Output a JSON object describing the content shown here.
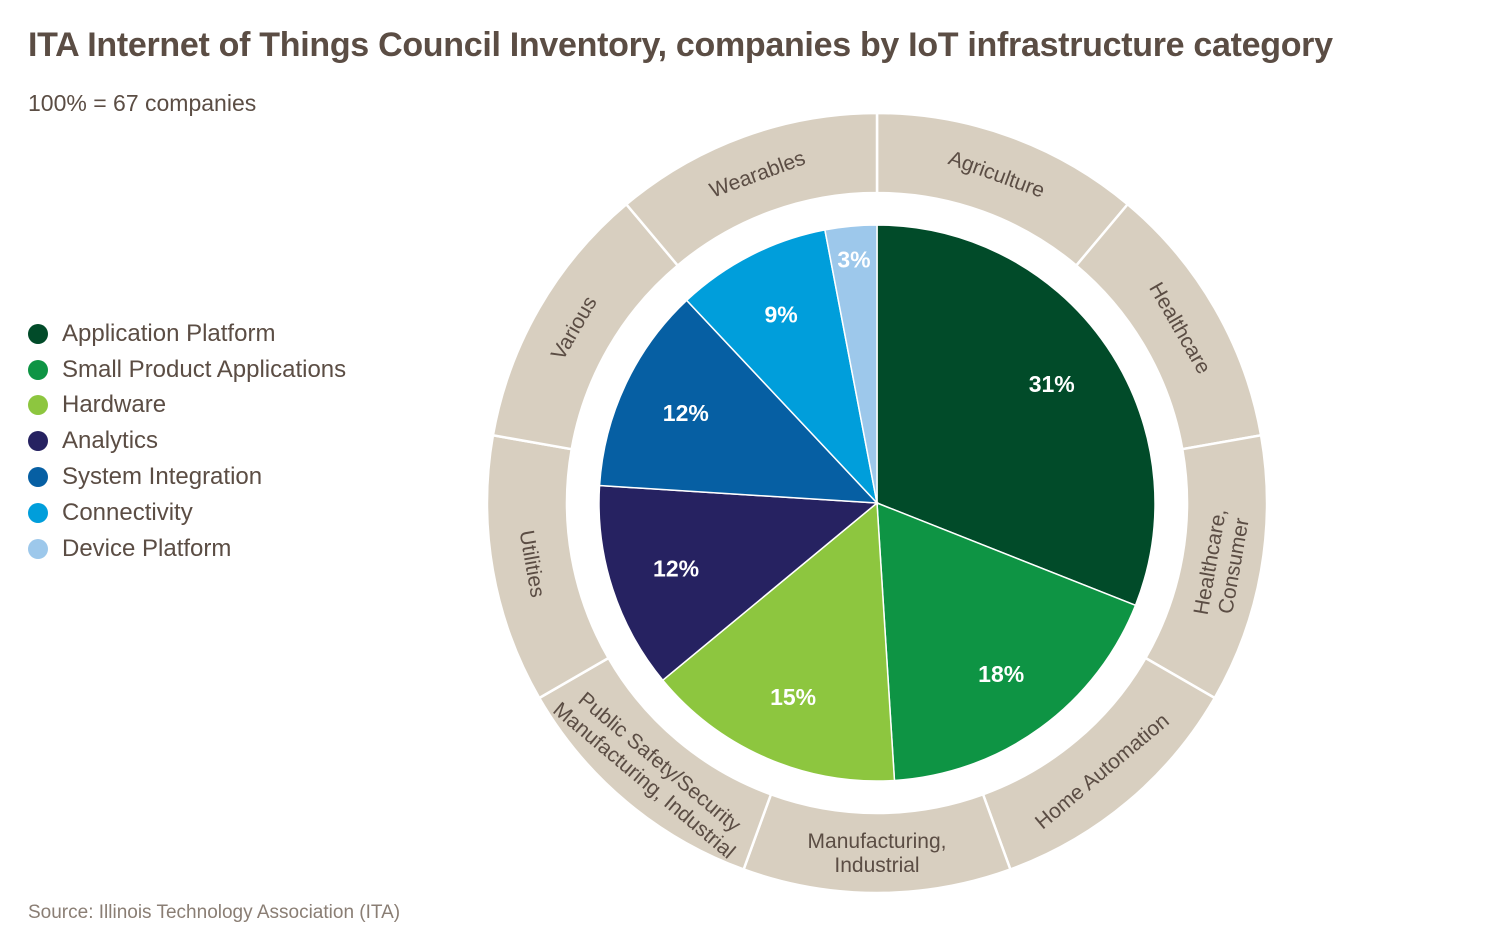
{
  "title": "ITA Internet of Things Council Inventory, companies by IoT infrastructure category",
  "subtitle": "100% = 67 companies",
  "source": "Source: Illinois Technology Association (ITA)",
  "chart_data": {
    "type": "pie",
    "title": "ITA Internet of Things Council Inventory, companies by IoT infrastructure category",
    "total_label": "100% = 67 companies",
    "legend_position": "left",
    "slices": [
      {
        "name": "Application Platform",
        "value": 31,
        "label": "31%",
        "color": "#014b29"
      },
      {
        "name": "Small Product Applications",
        "value": 18,
        "label": "18%",
        "color": "#0e9444"
      },
      {
        "name": "Hardware",
        "value": 15,
        "label": "15%",
        "color": "#8dc63f"
      },
      {
        "name": "Analytics",
        "value": 12,
        "label": "12%",
        "color": "#262261"
      },
      {
        "name": "System Integration",
        "value": 12,
        "label": "12%",
        "color": "#065fa3"
      },
      {
        "name": "Connectivity",
        "value": 9,
        "label": "9%",
        "color": "#009edb"
      },
      {
        "name": "Device Platform",
        "value": 3,
        "label": "3%",
        "color": "#9dc8eb"
      }
    ],
    "outer_ring": {
      "color": "#d8cfc0",
      "segments": [
        {
          "lines": [
            "Agriculture"
          ]
        },
        {
          "lines": [
            "Healthcare"
          ]
        },
        {
          "lines": [
            "Healthcare,",
            "Consumer"
          ]
        },
        {
          "lines": [
            "Home Automation"
          ]
        },
        {
          "lines": [
            "Manufacturing,",
            "Industrial"
          ]
        },
        {
          "lines": [
            "Public Safety/Security",
            "Manufacturing, Industrial"
          ]
        },
        {
          "lines": [
            "Utilities"
          ]
        },
        {
          "lines": [
            "Various"
          ]
        },
        {
          "lines": [
            "Wearables"
          ]
        }
      ]
    }
  }
}
